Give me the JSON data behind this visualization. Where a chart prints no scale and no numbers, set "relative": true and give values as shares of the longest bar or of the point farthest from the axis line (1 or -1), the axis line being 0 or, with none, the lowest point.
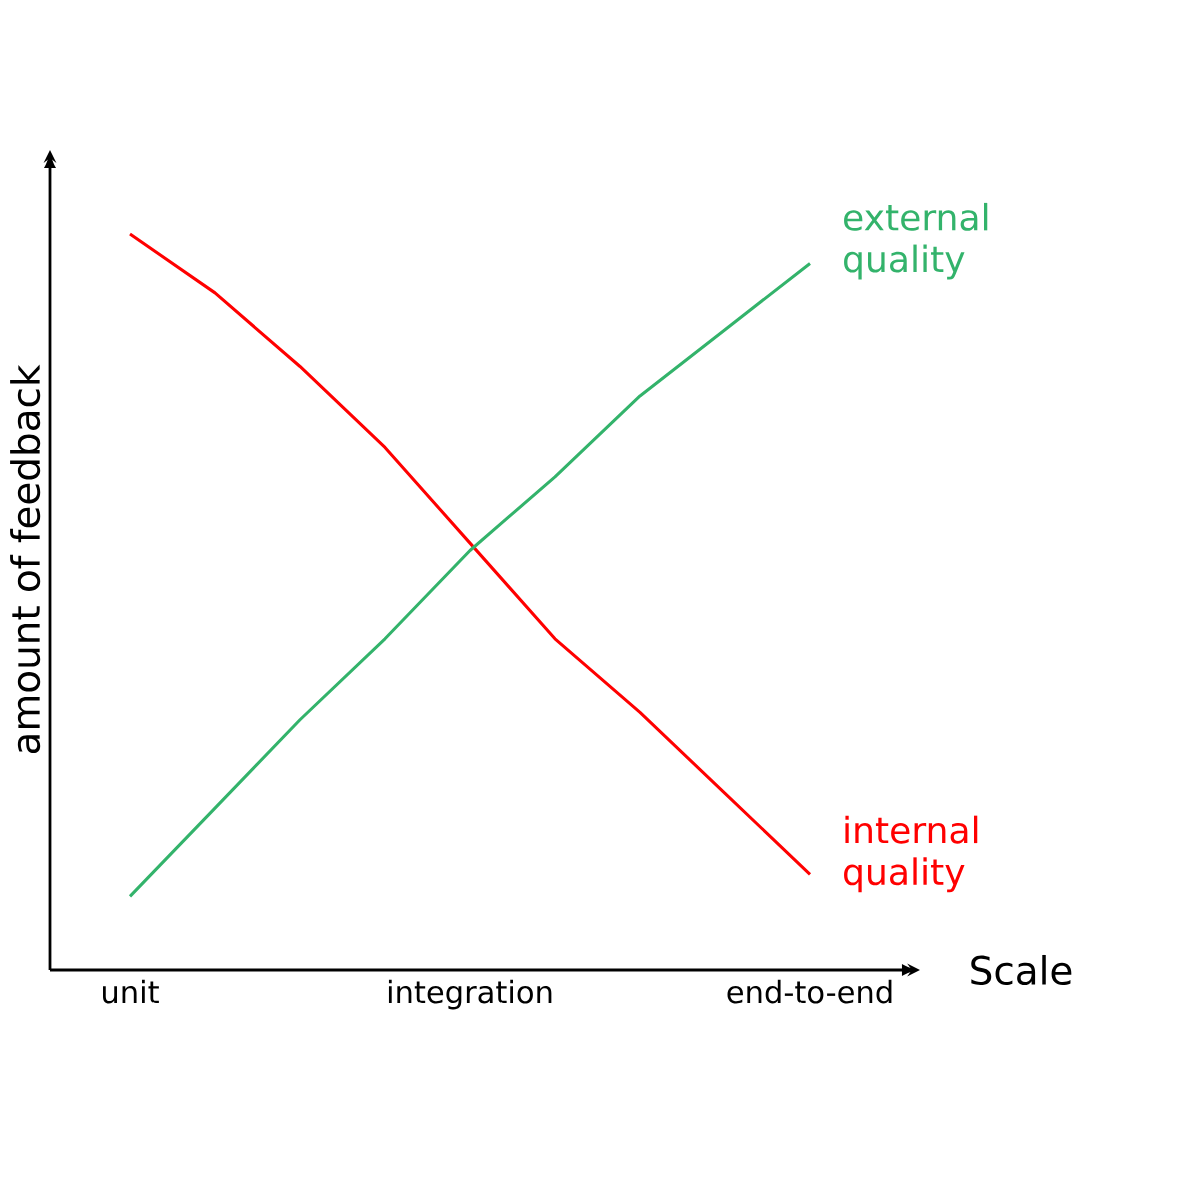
{
  "chart_data": {
    "type": "line",
    "xlabel": "Scale",
    "ylabel": "amount of feedback",
    "categories": [
      "unit",
      null,
      null,
      null,
      "integration",
      null,
      null,
      null,
      "end-to-end"
    ],
    "relative": true,
    "legend": false,
    "tick_labels": "x",
    "series": [
      {
        "name": "internal quality",
        "color": "#ff0000",
        "values": [
          1,
          0.92,
          0.82,
          0.71,
          0.58,
          0.45,
          0.35,
          0.24,
          0.13
        ]
      },
      {
        "name": "external quality",
        "color": "#33b36b",
        "values": [
          0.1,
          0.22,
          0.34,
          0.45,
          0.57,
          0.67,
          0.78,
          0.87,
          0.96
        ]
      }
    ]
  }
}
